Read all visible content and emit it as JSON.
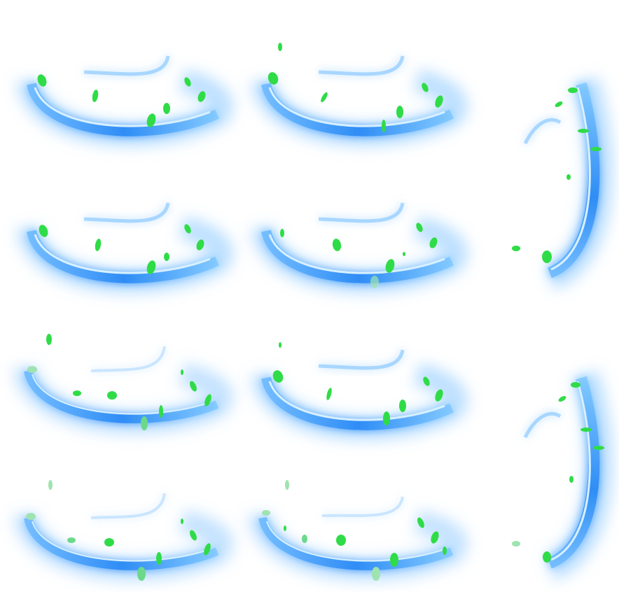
{
  "sheet": {
    "colors": {
      "background": "#ffffff",
      "swirl_glow": "#3aa0ff",
      "swirl_core": "#bfe6ff",
      "leaf": "#2fdc47",
      "leaf_dark": "#1fae34"
    },
    "sprite_count": 10,
    "sprites": [
      {
        "kind": "horizontal-swirl"
      },
      {
        "kind": "horizontal-swirl"
      },
      {
        "kind": "vertical-swirl"
      },
      {
        "kind": "horizontal-swirl"
      },
      {
        "kind": "horizontal-swirl"
      },
      {
        "kind": "horizontal-swirl"
      },
      {
        "kind": "horizontal-swirl"
      },
      {
        "kind": "vertical-swirl"
      },
      {
        "kind": "horizontal-swirl"
      },
      {
        "kind": "horizontal-swirl"
      }
    ]
  }
}
